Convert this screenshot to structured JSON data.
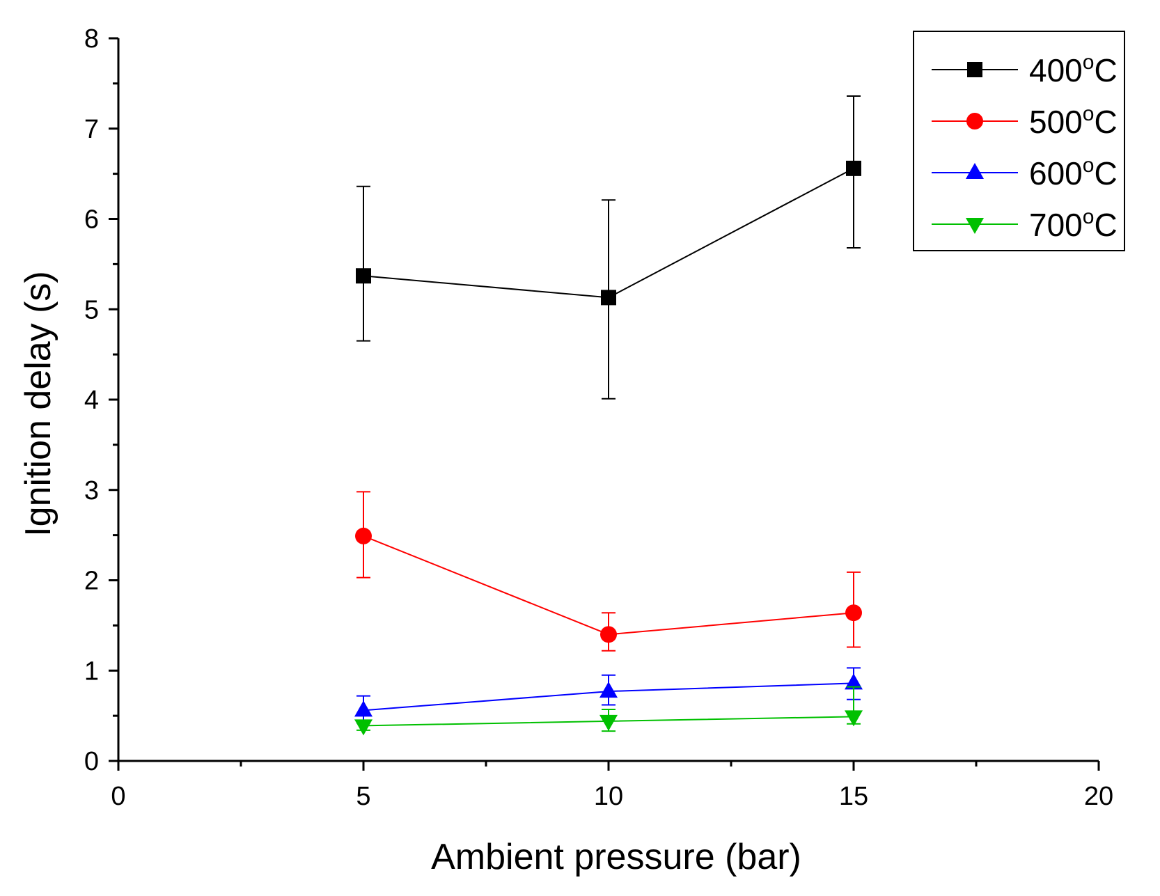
{
  "chart_data": {
    "type": "line",
    "title": "",
    "xlabel": "Ambient pressure (bar)",
    "ylabel": "Ignition delay (s)",
    "xlim": [
      0,
      20
    ],
    "ylim": [
      0,
      8
    ],
    "x_major_ticks": [
      0,
      5,
      10,
      15,
      20
    ],
    "x_tick_labels": [
      "0",
      "5",
      "10",
      "15",
      "20"
    ],
    "x_minor_step": 2.5,
    "y_major_ticks": [
      0,
      1,
      2,
      3,
      4,
      5,
      6,
      7,
      8
    ],
    "y_tick_labels": [
      "0",
      "1",
      "2",
      "3",
      "4",
      "5",
      "6",
      "7",
      "8"
    ],
    "y_minor_step": 0.5,
    "grid": false,
    "legend_position": "top-right",
    "x": [
      5,
      10,
      15
    ],
    "series": [
      {
        "name": "400",
        "unit_sup": "o",
        "unit": "C",
        "color": "#000000",
        "marker": "square",
        "values": [
          5.37,
          5.13,
          6.56
        ],
        "err_low": [
          4.65,
          4.01,
          5.68
        ],
        "err_high": [
          6.36,
          6.21,
          7.36
        ]
      },
      {
        "name": "500",
        "unit_sup": "o",
        "unit": "C",
        "color": "#ff0000",
        "marker": "circle",
        "values": [
          2.49,
          1.4,
          1.64
        ],
        "err_low": [
          2.03,
          1.22,
          1.26
        ],
        "err_high": [
          2.98,
          1.64,
          2.09
        ]
      },
      {
        "name": "600",
        "unit_sup": "o",
        "unit": "C",
        "color": "#0000ff",
        "marker": "triangle-up",
        "values": [
          0.56,
          0.77,
          0.86
        ],
        "err_low": [
          0.42,
          0.62,
          0.68
        ],
        "err_high": [
          0.72,
          0.95,
          1.03
        ]
      },
      {
        "name": "700",
        "unit_sup": "o",
        "unit": "C",
        "color": "#00c000",
        "marker": "triangle-down",
        "values": [
          0.39,
          0.44,
          0.49
        ],
        "err_low": [
          0.34,
          0.33,
          0.41
        ],
        "err_high": [
          0.45,
          0.57,
          0.82
        ]
      }
    ]
  }
}
